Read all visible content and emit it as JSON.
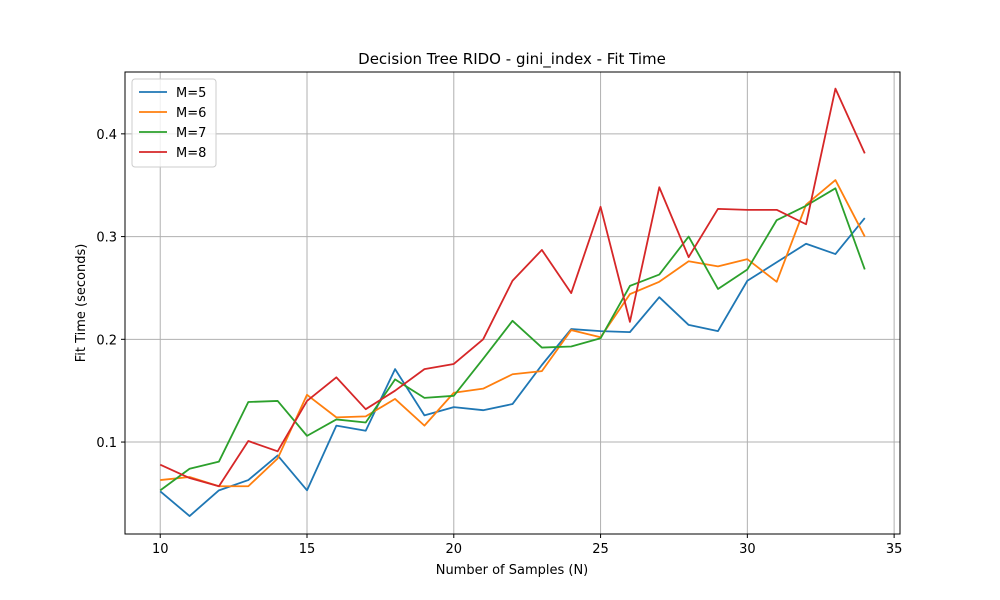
{
  "chart_data": {
    "type": "line",
    "title": "Decision Tree RIDO - gini_index - Fit Time",
    "xlabel": "Number of Samples (N)",
    "ylabel": "Fit Time (seconds)",
    "xlim": [
      8.8,
      35.2
    ],
    "ylim": [
      0.0105,
      0.4602
    ],
    "xticks": [
      10,
      15,
      20,
      25,
      30,
      35
    ],
    "yticks": [
      0.1,
      0.2,
      0.3,
      0.4
    ],
    "xtick_labels": [
      "10",
      "15",
      "20",
      "25",
      "30",
      "35"
    ],
    "ytick_labels": [
      "0.1",
      "0.2",
      "0.3",
      "0.4"
    ],
    "grid": true,
    "legend_position": "top-left",
    "x": [
      10,
      11,
      12,
      13,
      14,
      15,
      16,
      17,
      18,
      19,
      20,
      21,
      22,
      23,
      24,
      25,
      26,
      27,
      28,
      29,
      30,
      31,
      32,
      33,
      34
    ],
    "series": [
      {
        "name": "M=5",
        "color": "#1f77b4",
        "values": [
          0.052,
          0.028,
          0.053,
          0.063,
          0.087,
          0.053,
          0.116,
          0.111,
          0.171,
          0.126,
          0.134,
          0.131,
          0.137,
          0.175,
          0.21,
          0.208,
          0.207,
          0.241,
          0.214,
          0.208,
          0.257,
          0.275,
          0.293,
          0.283,
          0.318
        ]
      },
      {
        "name": "M=6",
        "color": "#ff7f0e",
        "values": [
          0.063,
          0.066,
          0.057,
          0.057,
          0.084,
          0.146,
          0.124,
          0.125,
          0.142,
          0.116,
          0.148,
          0.152,
          0.166,
          0.169,
          0.209,
          0.202,
          0.244,
          0.256,
          0.276,
          0.271,
          0.278,
          0.256,
          0.331,
          0.355,
          0.3
        ]
      },
      {
        "name": "M=7",
        "color": "#2ca02c",
        "values": [
          0.053,
          0.074,
          0.081,
          0.139,
          0.14,
          0.106,
          0.122,
          0.119,
          0.161,
          0.143,
          0.145,
          0.181,
          0.218,
          0.192,
          0.193,
          0.201,
          0.252,
          0.263,
          0.3,
          0.249,
          0.268,
          0.316,
          0.33,
          0.347,
          0.268
        ]
      },
      {
        "name": "M=8",
        "color": "#d62728",
        "values": [
          0.078,
          0.065,
          0.057,
          0.101,
          0.091,
          0.14,
          0.163,
          0.132,
          0.15,
          0.171,
          0.176,
          0.2,
          0.257,
          0.287,
          0.245,
          0.329,
          0.217,
          0.348,
          0.28,
          0.327,
          0.326,
          0.326,
          0.312,
          0.444,
          0.381
        ]
      }
    ]
  }
}
